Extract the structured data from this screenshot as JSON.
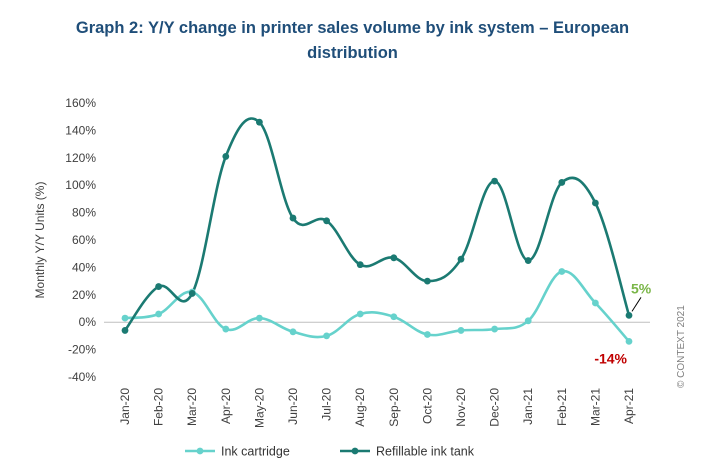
{
  "chart_data": {
    "type": "line",
    "title_line1": "Graph 2: Y/Y change in printer sales volume by ink system – European",
    "title_line2": "distribution",
    "ylabel": "Monthly Y/Y Units (%)",
    "xlabel": "",
    "categories": [
      "Jan-20",
      "Feb-20",
      "Mar-20",
      "Apr-20",
      "May-20",
      "Jun-20",
      "Jul-20",
      "Aug-20",
      "Sep-20",
      "Oct-20",
      "Nov-20",
      "Dec-20",
      "Jan-21",
      "Feb-21",
      "Mar-21",
      "Apr-21"
    ],
    "ylim": [
      -40,
      160
    ],
    "yticks": [
      -40,
      -20,
      0,
      20,
      40,
      60,
      80,
      100,
      120,
      140,
      160
    ],
    "ytick_labels": [
      "-40%",
      "-20%",
      "0%",
      "20%",
      "40%",
      "60%",
      "80%",
      "100%",
      "120%",
      "140%",
      "160%"
    ],
    "series": [
      {
        "name": "Ink cartridge",
        "color": "#66d2cc",
        "values": [
          3,
          6,
          22,
          -5,
          3,
          -7,
          -10,
          6,
          4,
          -9,
          -6,
          -5,
          1,
          37,
          14,
          -14
        ]
      },
      {
        "name": "Refillable ink tank",
        "color": "#1b7a72",
        "values": [
          -6,
          26,
          21,
          121,
          146,
          76,
          74,
          42,
          47,
          30,
          46,
          103,
          45,
          102,
          87,
          5
        ]
      }
    ],
    "annotations": [
      {
        "text": "5%",
        "color": "#7ab648",
        "series": 1,
        "index": 15
      },
      {
        "text": "-14%",
        "color": "#c00000",
        "series": 0,
        "index": 15
      }
    ],
    "grid": false,
    "legend": "bottom",
    "credit": "© CONTEXT 2021"
  }
}
